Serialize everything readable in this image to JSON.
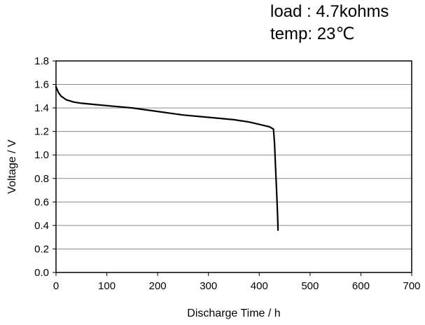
{
  "annotations": {
    "load": "load : 4.7kohms",
    "temp": "temp: 23℃"
  },
  "chart_data": {
    "type": "line",
    "title": "",
    "xlabel": "Discharge Time / h",
    "ylabel": "Voltage / V",
    "xlim": [
      0,
      700
    ],
    "ylim": [
      0.0,
      1.8
    ],
    "x_ticks": [
      "0",
      "100",
      "200",
      "300",
      "400",
      "500",
      "600",
      "700"
    ],
    "y_ticks": [
      "0.0",
      "0.2",
      "0.4",
      "0.6",
      "0.8",
      "1.0",
      "1.2",
      "1.4",
      "1.6",
      "1.8"
    ],
    "grid": "horizontal",
    "legend": "none",
    "series": [
      {
        "color": "#000000",
        "points": [
          [
            0,
            1.58
          ],
          [
            5,
            1.53
          ],
          [
            10,
            1.5
          ],
          [
            20,
            1.47
          ],
          [
            35,
            1.45
          ],
          [
            50,
            1.44
          ],
          [
            75,
            1.43
          ],
          [
            100,
            1.42
          ],
          [
            150,
            1.4
          ],
          [
            200,
            1.37
          ],
          [
            250,
            1.34
          ],
          [
            300,
            1.32
          ],
          [
            350,
            1.3
          ],
          [
            380,
            1.28
          ],
          [
            400,
            1.26
          ],
          [
            420,
            1.24
          ],
          [
            428,
            1.22
          ],
          [
            430,
            1.1
          ],
          [
            432,
            0.9
          ],
          [
            434,
            0.7
          ],
          [
            436,
            0.5
          ],
          [
            437,
            0.36
          ]
        ]
      }
    ]
  }
}
